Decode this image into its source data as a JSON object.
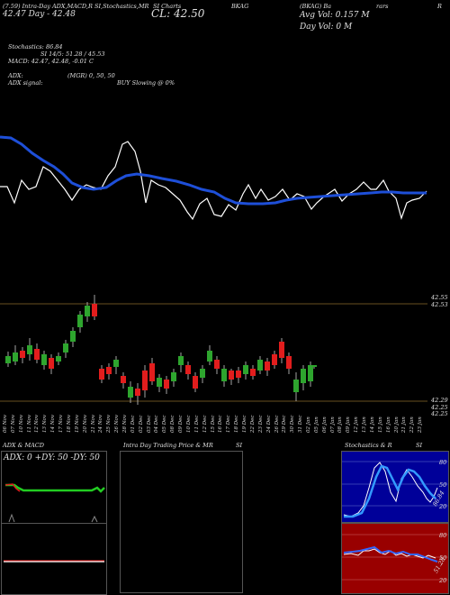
{
  "header": {
    "line1": "(7.59) Intra-Day   ADX,MACD,R",
    "line1b": "SI,Stochastics,MR",
    "line1c": "SI Charts",
    "ticker": "BKAG",
    "line1e": "(BKAG) Ba",
    "line1f": "R",
    "line1g": "rars",
    "day_range": "42.47 Day - 42.48",
    "close": "CL: 42.50",
    "avg_vol": "Avg Vol: 0.157 M",
    "day_vol": "Day Vol: 0   M"
  },
  "indicators": {
    "stochastics": "Stochastics: 86.84",
    "si": "SI 14/5: 51.28 / 45.53",
    "macd": "MACD: 42.47, 42.48, -0.01 C",
    "adx": "ADX:",
    "mgr": "(MGR) 0, 50,  50",
    "adx_signal": "ADX  signal:",
    "buy_slowing": "BUY Slowing @ 0%"
  },
  "price_labels": {
    "top1": "42.55",
    "top2": "42.53",
    "bottom1": "42.29",
    "bottom2": "42.25",
    "bottom3": "42.25"
  },
  "dates": [
    "06 Nov",
    "07 Nov",
    "10 Nov",
    "11 Nov",
    "12 Nov",
    "13 Nov",
    "14 Nov",
    "17 Nov",
    "18 Nov",
    "19 Nov",
    "20 Nov",
    "21 Nov",
    "24 Nov",
    "25 Nov",
    "26 Nov",
    "28 Nov",
    "01 Dec",
    "02 Dec",
    "03 Dec",
    "04 Dec",
    "05 Dec",
    "08 Dec",
    "09 Dec",
    "10 Dec",
    "11 Dec",
    "12 Dec",
    "15 Dec",
    "16 Dec",
    "17 Dec",
    "18 Dec",
    "19 Dec",
    "22 Dec",
    "23 Dec",
    "24 Dec",
    "26 Dec",
    "29 Dec",
    "30 Dec",
    "31 Dec",
    "02 Jan",
    "05 Jan",
    "06 Jan",
    "07 Jan",
    "08 Jan",
    "09 Jan",
    "12 Jan",
    "13 Jan",
    "14 Jan",
    "15 Jan",
    "16 Jan",
    "20 Jan",
    "21 Jan",
    "22 Jan",
    "23 Jan"
  ],
  "panels": {
    "adx_macd_title": "ADX  & MACD",
    "adx_text": "ADX: 0   +DY: 50  -DY: 50",
    "intraday_title": "Intra  Day Trading Price  & MR",
    "intraday_si": "SI",
    "stoch_title": "Stochastics & R",
    "stoch_si": "SI",
    "stoch_scale": [
      "80",
      "50",
      "20"
    ],
    "stoch_value": "86.84",
    "rsi_scale": [
      "80",
      "50",
      "20"
    ],
    "rsi_value": "51.28"
  },
  "colors": {
    "background": "#000000",
    "price_line": "#ffffff",
    "ma_line": "#1e4fd8",
    "candle_up": "#2ea52e",
    "candle_down": "#e21d1d",
    "adx_green": "#22cc22",
    "stoch_bg": "#000099",
    "rsi_bg": "#990000"
  }
}
